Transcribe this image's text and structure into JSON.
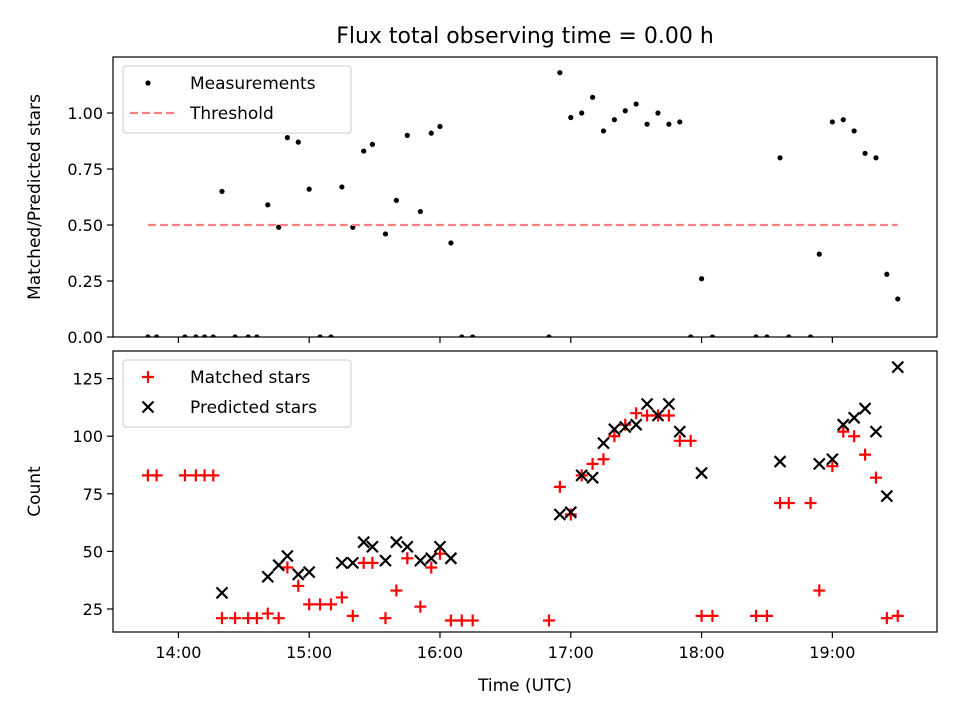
{
  "title": "Flux total observing time = 0.00 h",
  "xlabel": "Time (UTC)",
  "x_ticks": [
    "14:00",
    "15:00",
    "16:00",
    "17:00",
    "18:00",
    "19:00"
  ],
  "colors": {
    "matched": "#ff0000",
    "predicted": "#000000",
    "threshold": "#ff8080",
    "measurements": "#000000"
  },
  "chart_data": [
    {
      "type": "scatter",
      "ylabel": "Matched/Predicted stars",
      "xlim": [
        "13:30",
        "19:48"
      ],
      "ylim": [
        0,
        1.25
      ],
      "y_ticks": [
        "0.00",
        "0.25",
        "0.50",
        "0.75",
        "1.00"
      ],
      "legend": "top-left",
      "series": [
        {
          "name": "Measurements",
          "marker": "dot",
          "points": [
            [
              "13:46",
              0.0
            ],
            [
              "13:50",
              0.0
            ],
            [
              "14:03",
              0.0
            ],
            [
              "14:08",
              0.0
            ],
            [
              "14:12",
              0.0
            ],
            [
              "14:16",
              0.0
            ],
            [
              "14:20",
              0.65
            ],
            [
              "14:26",
              0.0
            ],
            [
              "14:32",
              0.0
            ],
            [
              "14:36",
              0.0
            ],
            [
              "14:41",
              0.59
            ],
            [
              "14:46",
              0.49
            ],
            [
              "14:50",
              0.89
            ],
            [
              "14:55",
              0.87
            ],
            [
              "15:00",
              0.66
            ],
            [
              "15:05",
              0.0
            ],
            [
              "15:10",
              0.0
            ],
            [
              "15:15",
              0.67
            ],
            [
              "15:20",
              0.49
            ],
            [
              "15:25",
              0.83
            ],
            [
              "15:29",
              0.86
            ],
            [
              "15:35",
              0.46
            ],
            [
              "15:40",
              0.61
            ],
            [
              "15:45",
              0.9
            ],
            [
              "15:51",
              0.56
            ],
            [
              "15:56",
              0.91
            ],
            [
              "16:00",
              0.94
            ],
            [
              "16:05",
              0.42
            ],
            [
              "16:10",
              0.0
            ],
            [
              "16:15",
              0.0
            ],
            [
              "16:50",
              0.0
            ],
            [
              "16:55",
              1.18
            ],
            [
              "17:00",
              0.98
            ],
            [
              "17:05",
              1.0
            ],
            [
              "17:10",
              1.07
            ],
            [
              "17:15",
              0.92
            ],
            [
              "17:20",
              0.97
            ],
            [
              "17:25",
              1.01
            ],
            [
              "17:30",
              1.04
            ],
            [
              "17:35",
              0.95
            ],
            [
              "17:40",
              1.0
            ],
            [
              "17:45",
              0.95
            ],
            [
              "17:50",
              0.96
            ],
            [
              "17:55",
              0.0
            ],
            [
              "18:00",
              0.26
            ],
            [
              "18:05",
              0.0
            ],
            [
              "18:25",
              0.0
            ],
            [
              "18:30",
              0.0
            ],
            [
              "18:36",
              0.8
            ],
            [
              "18:40",
              0.0
            ],
            [
              "18:50",
              0.0
            ],
            [
              "18:54",
              0.37
            ],
            [
              "19:00",
              0.96
            ],
            [
              "19:05",
              0.97
            ],
            [
              "19:10",
              0.92
            ],
            [
              "19:15",
              0.82
            ],
            [
              "19:20",
              0.8
            ],
            [
              "19:25",
              0.28
            ],
            [
              "19:30",
              0.17
            ]
          ]
        },
        {
          "name": "Threshold",
          "marker": "dashed-line",
          "points": [
            [
              "13:46",
              0.5
            ],
            [
              "19:30",
              0.5
            ]
          ]
        }
      ]
    },
    {
      "type": "scatter",
      "ylabel": "Count",
      "xlim": [
        "13:30",
        "19:48"
      ],
      "ylim": [
        15,
        137
      ],
      "y_ticks": [
        "25",
        "50",
        "75",
        "100",
        "125"
      ],
      "legend": "top-left",
      "series": [
        {
          "name": "Matched stars",
          "marker": "plus",
          "points": [
            [
              "13:46",
              83
            ],
            [
              "13:50",
              83
            ],
            [
              "14:03",
              83
            ],
            [
              "14:08",
              83
            ],
            [
              "14:12",
              83
            ],
            [
              "14:16",
              83
            ],
            [
              "14:20",
              21
            ],
            [
              "14:26",
              21
            ],
            [
              "14:32",
              21
            ],
            [
              "14:36",
              21
            ],
            [
              "14:41",
              23
            ],
            [
              "14:46",
              21
            ],
            [
              "14:50",
              43
            ],
            [
              "14:55",
              35
            ],
            [
              "15:00",
              27
            ],
            [
              "15:05",
              27
            ],
            [
              "15:10",
              27
            ],
            [
              "15:15",
              30
            ],
            [
              "15:20",
              22
            ],
            [
              "15:25",
              45
            ],
            [
              "15:29",
              45
            ],
            [
              "15:35",
              21
            ],
            [
              "15:40",
              33
            ],
            [
              "15:45",
              47
            ],
            [
              "15:51",
              26
            ],
            [
              "15:56",
              43
            ],
            [
              "16:00",
              49
            ],
            [
              "16:05",
              20
            ],
            [
              "16:10",
              20
            ],
            [
              "16:15",
              20
            ],
            [
              "16:50",
              20
            ],
            [
              "16:55",
              78
            ],
            [
              "17:00",
              66
            ],
            [
              "17:05",
              83
            ],
            [
              "17:10",
              88
            ],
            [
              "17:15",
              90
            ],
            [
              "17:20",
              100
            ],
            [
              "17:25",
              105
            ],
            [
              "17:30",
              110
            ],
            [
              "17:35",
              109
            ],
            [
              "17:40",
              109
            ],
            [
              "17:45",
              109
            ],
            [
              "17:50",
              98
            ],
            [
              "17:55",
              98
            ],
            [
              "18:00",
              22
            ],
            [
              "18:05",
              22
            ],
            [
              "18:25",
              22
            ],
            [
              "18:30",
              22
            ],
            [
              "18:36",
              71
            ],
            [
              "18:40",
              71
            ],
            [
              "18:50",
              71
            ],
            [
              "18:54",
              33
            ],
            [
              "19:00",
              87
            ],
            [
              "19:05",
              102
            ],
            [
              "19:10",
              100
            ],
            [
              "19:15",
              92
            ],
            [
              "19:20",
              82
            ],
            [
              "19:25",
              21
            ],
            [
              "19:30",
              22
            ]
          ]
        },
        {
          "name": "Predicted stars",
          "marker": "x",
          "points": [
            [
              "14:20",
              32
            ],
            [
              "14:41",
              39
            ],
            [
              "14:46",
              44
            ],
            [
              "14:50",
              48
            ],
            [
              "14:55",
              40
            ],
            [
              "15:00",
              41
            ],
            [
              "15:15",
              45
            ],
            [
              "15:20",
              45
            ],
            [
              "15:25",
              54
            ],
            [
              "15:29",
              52
            ],
            [
              "15:35",
              46
            ],
            [
              "15:40",
              54
            ],
            [
              "15:45",
              52
            ],
            [
              "15:51",
              46
            ],
            [
              "15:56",
              47
            ],
            [
              "16:00",
              52
            ],
            [
              "16:05",
              47
            ],
            [
              "16:55",
              66
            ],
            [
              "17:00",
              67
            ],
            [
              "17:05",
              83
            ],
            [
              "17:10",
              82
            ],
            [
              "17:15",
              97
            ],
            [
              "17:20",
              103
            ],
            [
              "17:25",
              104
            ],
            [
              "17:30",
              105
            ],
            [
              "17:35",
              114
            ],
            [
              "17:40",
              109
            ],
            [
              "17:45",
              114
            ],
            [
              "17:50",
              102
            ],
            [
              "18:00",
              84
            ],
            [
              "18:36",
              89
            ],
            [
              "18:54",
              88
            ],
            [
              "19:00",
              90
            ],
            [
              "19:05",
              105
            ],
            [
              "19:10",
              108
            ],
            [
              "19:15",
              112
            ],
            [
              "19:20",
              102
            ],
            [
              "19:25",
              74
            ],
            [
              "19:30",
              130
            ]
          ]
        }
      ]
    }
  ]
}
